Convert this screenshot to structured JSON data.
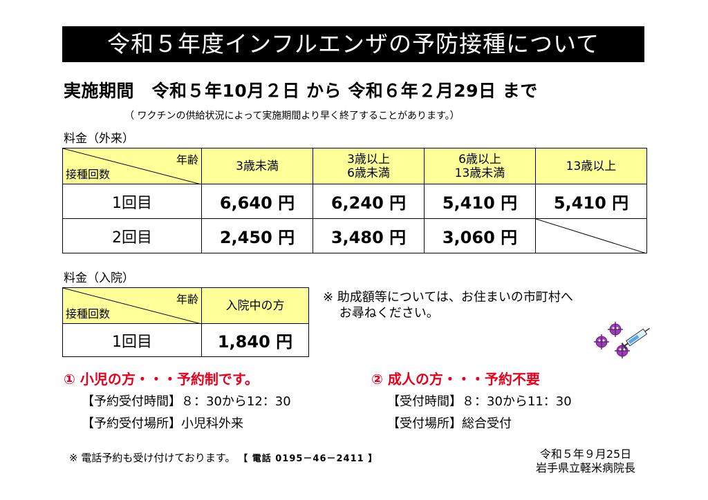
{
  "title": "令和５年度インフルエンザの予防接種について",
  "period": "実施期間　令和５年10月２日 から 令和６年２月29日 まで",
  "period_note": "（ ワクチンの供給状況によって実施期間より早く終了することがあります。）",
  "outpatient": {
    "label": "料金（外来）",
    "corner_top": "年齢",
    "corner_bottom": "接種回数",
    "columns": [
      "3歳未満",
      "3歳以上\n6歳未満",
      "6歳以上\n13歳未満",
      "13歳以上"
    ],
    "rows": [
      {
        "count": "1回目",
        "values": [
          "6,640 円",
          "6,240 円",
          "5,410 円",
          "5,410 円"
        ]
      },
      {
        "count": "2回目",
        "values": [
          "2,450 円",
          "3,480 円",
          "3,060 円",
          ""
        ]
      }
    ]
  },
  "inpatient": {
    "label": "料金（入院）",
    "corner_top": "年齢",
    "corner_bottom": "接種回数",
    "column": "入院中の方",
    "row": {
      "count": "1回目",
      "value": "1,840 円"
    }
  },
  "inquiry_note": "※ 助成額等については、お住まいの市町村へ\n　 お尋ねください。",
  "child": {
    "heading": "① 小児の方・・・予約制です。",
    "time": "【予約受付時間】８：30から12：30",
    "place": "【予約受付場所】小児科外来"
  },
  "adult": {
    "heading": "② 成人の方・・・予約不要",
    "time": "【受付時間】８：30から11：30",
    "place": "【受付場所】総合受付"
  },
  "phone_note": "※ 電話予約も受け付けております。",
  "phone_number": "【 電話 0195－46－2411 】",
  "date": "令和５年９月25日",
  "issuer": "岩手県立軽米病院長",
  "colors": {
    "header_fill": "#ffff99",
    "accent_red": "#e8001c",
    "title_bg": "#000000"
  }
}
